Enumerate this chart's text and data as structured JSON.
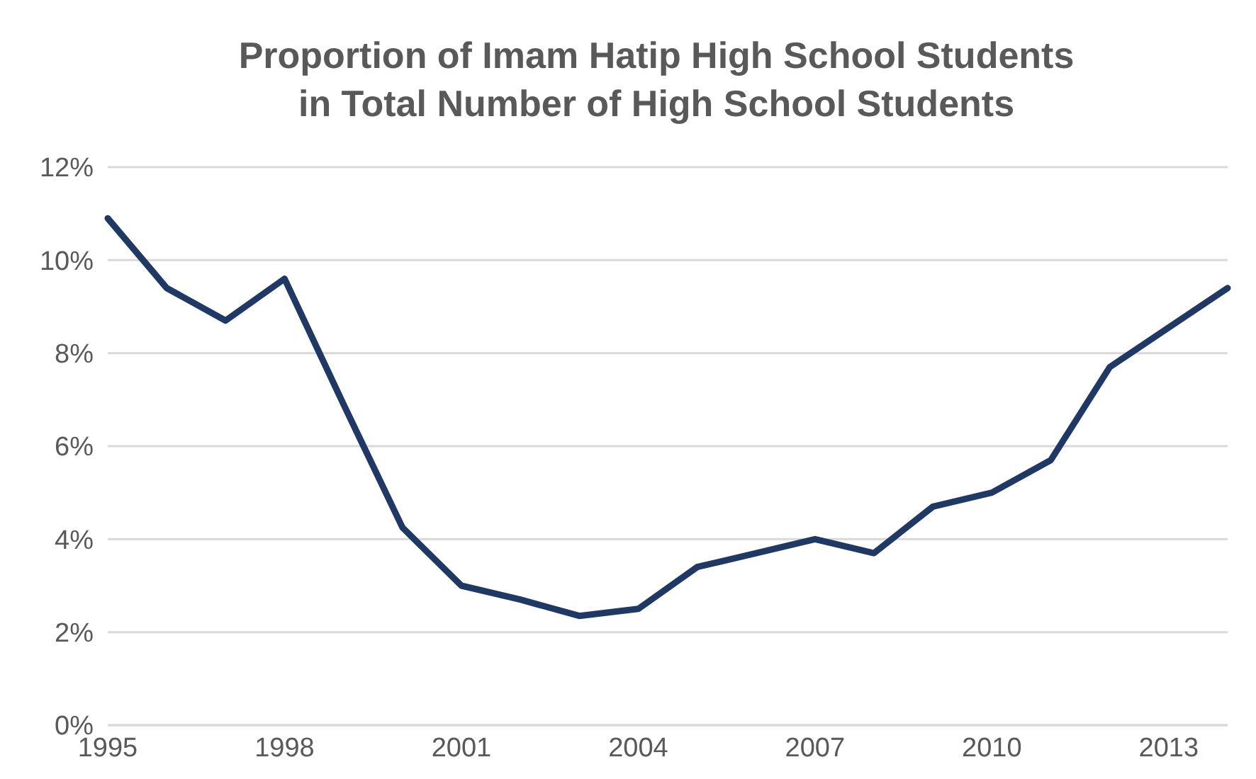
{
  "chart_data": {
    "type": "line",
    "title": "Proportion of Imam Hatip High School Students\nin Total Number of High School Students",
    "x": [
      1995,
      1996,
      1997,
      1998,
      1999,
      2000,
      2001,
      2002,
      2003,
      2004,
      2005,
      2006,
      2007,
      2008,
      2009,
      2010,
      2011,
      2012,
      2013,
      2014
    ],
    "series": [
      {
        "color": "#1f3864",
        "values": [
          10.9,
          9.4,
          8.7,
          9.6,
          6.9,
          4.25,
          3.0,
          2.7,
          2.35,
          2.5,
          3.4,
          3.7,
          4.0,
          3.7,
          4.7,
          5.0,
          5.7,
          7.7,
          8.55,
          9.4
        ]
      }
    ],
    "xlim": [
      1995,
      2014
    ],
    "xticks": [
      1995,
      1998,
      2001,
      2004,
      2007,
      2010,
      2013
    ],
    "ylim": [
      0,
      12
    ],
    "yticks": [
      {
        "value": 0,
        "label": "0%"
      },
      {
        "value": 2,
        "label": "2%"
      },
      {
        "value": 4,
        "label": "4%"
      },
      {
        "value": 6,
        "label": "6%"
      },
      {
        "value": 8,
        "label": "8%"
      },
      {
        "value": 10,
        "label": "10%"
      },
      {
        "value": 12,
        "label": "12%"
      }
    ],
    "grid": "y",
    "marker": "none",
    "line_style": "solid"
  }
}
